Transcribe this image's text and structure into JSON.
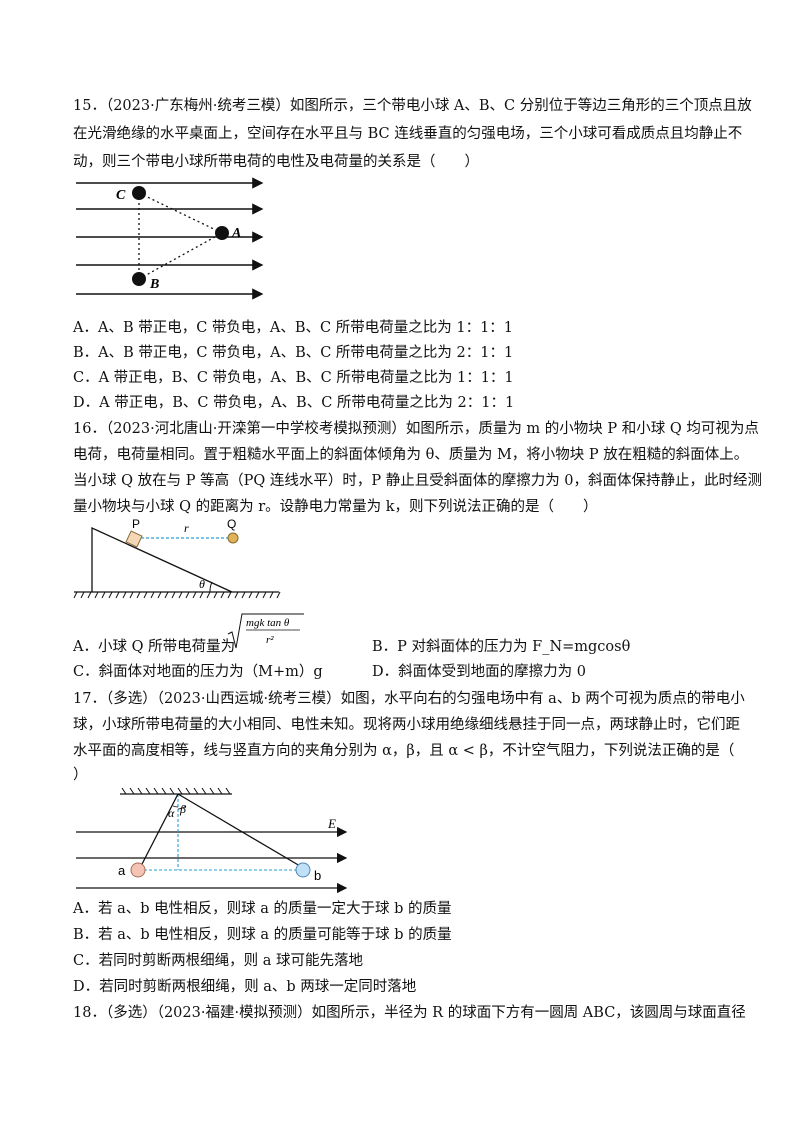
{
  "q15": {
    "line1": "15．（2023·广东梅州·统考三模）如图所示，三个带电小球 A、B、C 分别位于等边三角形的三个顶点且放",
    "line2": "在光滑绝缘的水平桌面上，空间存在水平且与 BC 连线垂直的匀强电场，三个小球可看成质点且均静止不",
    "line3": "动，则三个带电小球所带电荷的电性及电荷量的关系是（　　）",
    "fig": {
      "C": "C",
      "A": "A",
      "B": "B"
    },
    "options": [
      "A．A、B 带正电，C 带负电，A、B、C 所带电荷量之比为 1：1：1",
      "B．A、B 带正电，C 带负电，A、B、C 所带电荷量之比为 2：1：1",
      "C．A 带正电，B、C 带负电，A、B、C 所带电荷量之比为 1：1：1",
      "D．A 带正电，B、C 带负电，A、B、C 所带电荷量之比为 2：1：1"
    ]
  },
  "q16": {
    "line1": "16．（2023·河北唐山·开滦第一中学校考模拟预测）如图所示，质量为 m 的小物块 P 和小球 Q 均可视为点",
    "line2": "电荷，电荷量相同。置于粗糙水平面上的斜面体倾角为 θ、质量为 M，将小物块 P 放在粗糙的斜面体上。",
    "line3": "当小球 Q 放在与 P 等高（PQ 连线水平）时，P 静止且受斜面体的摩擦力为 0，斜面体保持静止，此时经测",
    "line4": "量小物块与小球 Q 的距离为 r。设静电力常量为 k，则下列说法正确的是（　　）",
    "fig": {
      "P": "P",
      "r": "r",
      "Q": "Q",
      "theta": "θ"
    },
    "optA_prefix": "A．小球 Q 所带电荷量为",
    "optA_num": "mgk tan θ",
    "optA_den": "r²",
    "optB": "B．P 对斜面体的压力为 F_N=mgcosθ",
    "optC": "C．斜面体对地面的压力为（M+m）g",
    "optD": "D．斜面体受到地面的摩擦力为 0"
  },
  "q17": {
    "line1": "17．（多选）（2023·山西运城·统考三模）如图，水平向右的匀强电场中有 a、b 两个可视为质点的带电小",
    "line2": "球，小球所带电荷量的大小相同、电性未知。现将两小球用绝缘细线悬挂于同一点，两球静止时，它们距",
    "line3": "水平面的高度相等，线与竖直方向的夹角分别为 α，β，且 α < β，不计空气阻力，下列说法正确的是（",
    "line4": "）",
    "fig": {
      "alpha": "α",
      "beta": "β",
      "E": "E",
      "a": "a",
      "b": "b"
    },
    "options": [
      "A．若 a、b 电性相反，则球 a 的质量一定大于球 b 的质量",
      "B．若 a、b 电性相反，则球 a 的质量可能等于球 b 的质量",
      "C．若同时剪断两根细绳，则 a 球可能先落地",
      "D．若同时剪断两根细绳，则 a、b 两球一定同时落地"
    ]
  },
  "q18": {
    "line1": "18．（多选）（2023·福建·模拟预测）如图所示，半径为 R 的球面下方有一圆周 ABC，该圆周与球面直径"
  }
}
